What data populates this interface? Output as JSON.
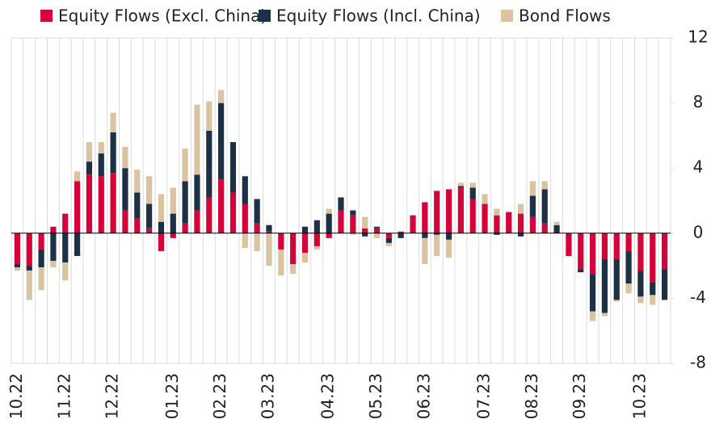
{
  "chart_data": {
    "type": "stacked_bar",
    "categories": [
      "10.22",
      null,
      null,
      null,
      "11.22",
      null,
      null,
      null,
      "12.22",
      null,
      null,
      null,
      null,
      "01.23",
      null,
      null,
      null,
      "02.23",
      null,
      null,
      null,
      "03.23",
      null,
      null,
      null,
      null,
      "04.23",
      null,
      null,
      null,
      "05.23",
      null,
      null,
      null,
      "06.23",
      null,
      null,
      null,
      null,
      "07.23",
      null,
      null,
      null,
      "08.23",
      null,
      null,
      null,
      "09.23",
      null,
      null,
      null,
      null,
      "10.23",
      null,
      null
    ],
    "series": [
      {
        "name": "Equity Flows (Excl. China)",
        "color": "#d4043a",
        "values": [
          -1.9,
          -2.0,
          -1.0,
          0.4,
          1.2,
          3.2,
          3.6,
          3.5,
          3.7,
          1.4,
          0.9,
          0.3,
          -1.1,
          -0.3,
          0.6,
          1.4,
          2.2,
          3.3,
          2.5,
          1.8,
          0.6,
          0.1,
          -1.0,
          -1.9,
          -1.2,
          -0.8,
          -0.3,
          1.4,
          1.1,
          0.3,
          0.3,
          -0.3,
          0.1,
          1.1,
          1.9,
          2.6,
          2.7,
          2.8,
          2.1,
          1.8,
          1.1,
          1.3,
          1.2,
          1.0,
          0.6,
          0,
          -1.4,
          -2.2,
          -2.5,
          -1.6,
          -1.6,
          -1.1,
          -2.3,
          -3.0,
          -2.2
        ]
      },
      {
        "name": "Equity Flows (Incl. China)",
        "color": "#1c3146",
        "values": [
          -0.2,
          -0.3,
          -1.1,
          -1.7,
          -1.8,
          -1.4,
          0.8,
          1.4,
          2.5,
          2.6,
          1.6,
          1.5,
          0.7,
          1.2,
          2.6,
          2.2,
          4.1,
          4.7,
          3.1,
          1.7,
          1.5,
          0.4,
          0,
          0,
          0.4,
          0.8,
          1.2,
          0.8,
          0.3,
          -0.2,
          0.1,
          -0.3,
          -0.3,
          0,
          -0.3,
          -0.1,
          -0.4,
          0.1,
          0.7,
          0,
          -0.1,
          0,
          -0.2,
          1.3,
          2.1,
          0.5,
          0,
          -0.2,
          -2.3,
          -3.3,
          -2.5,
          -2.0,
          -1.6,
          -0.8,
          -1.9
        ]
      },
      {
        "name": "Bond Flows",
        "color": "#d9c3a0",
        "values": [
          -0.2,
          -1.8,
          -1.4,
          -0.4,
          -1.1,
          0.6,
          1.2,
          0.7,
          1.2,
          1.3,
          1.4,
          1.7,
          1.7,
          1.6,
          2.0,
          4.3,
          1.8,
          0.8,
          0,
          -0.9,
          -1.1,
          -2.0,
          -1.6,
          -0.6,
          -0.6,
          -0.2,
          0.3,
          0,
          -0.1,
          0.7,
          -0.3,
          -0.2,
          0,
          0,
          -1.6,
          -1.3,
          -1.1,
          0.2,
          0.3,
          0.6,
          0.4,
          0,
          0.6,
          0.9,
          0.5,
          0.2,
          0,
          0,
          -0.6,
          -0.2,
          -0.1,
          -0.6,
          -0.4,
          -0.6,
          0
        ]
      }
    ],
    "ylim": [
      -8,
      12
    ],
    "yticks": [
      -8,
      -4,
      0,
      4,
      8,
      12
    ],
    "grid": true,
    "legend": "top"
  }
}
